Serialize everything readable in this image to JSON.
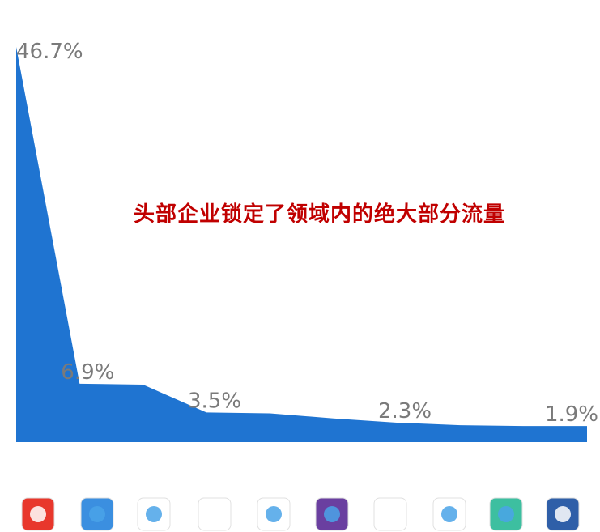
{
  "chart_data": {
    "type": "area",
    "annotation": "头部企业锁定了领域内的绝大部分流量",
    "categories": [
      null,
      null,
      null,
      null,
      null,
      null,
      null,
      null,
      null,
      null
    ],
    "values": [
      46.7,
      6.9,
      6.8,
      3.5,
      3.4,
      2.8,
      2.3,
      2.0,
      1.9,
      1.9
    ],
    "value_labels": [
      "46.7%",
      "6.9%",
      null,
      "3.5%",
      null,
      null,
      "2.3%",
      null,
      null,
      "1.9%"
    ],
    "color": "#1f74d1",
    "ylim": [
      0,
      50
    ]
  }
}
